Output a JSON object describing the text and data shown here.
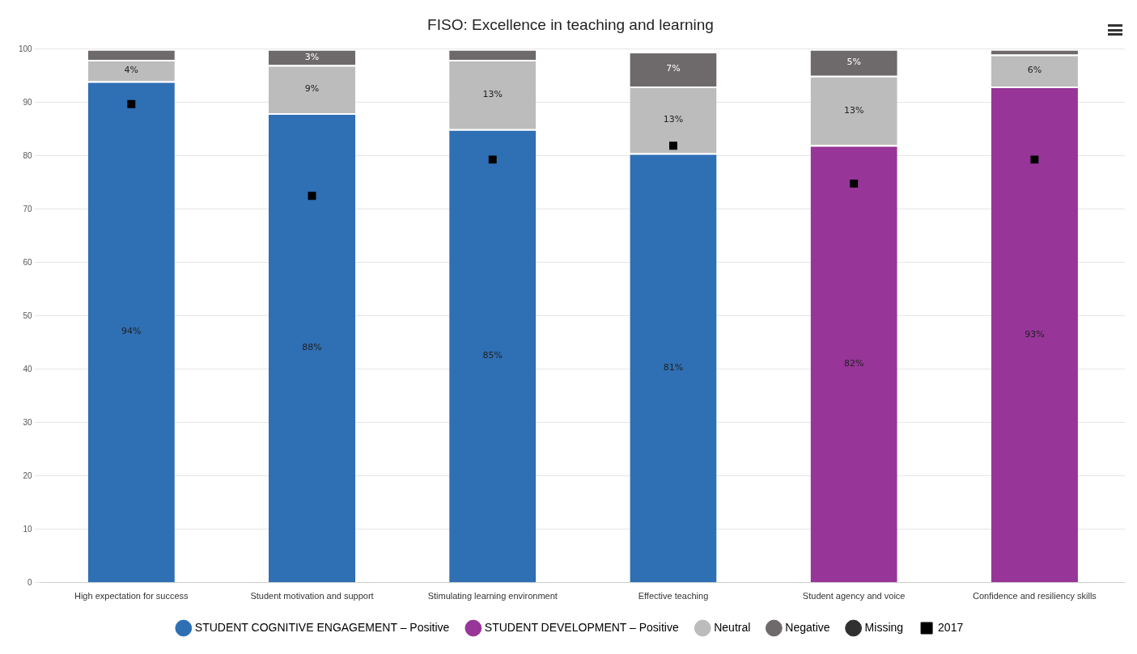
{
  "chart_data": {
    "type": "bar",
    "stacked": true,
    "title": "FISO: Excellence in teaching and learning",
    "categories": [
      "High expectation for success",
      "Student motivation and support",
      "Stimulating learning environment",
      "Effective teaching",
      "Student agency and voice",
      "Confidence and resiliency skills"
    ],
    "series": [
      {
        "name": "STUDENT COGNITIVE ENGAGEMENT – Positive",
        "color": "#2f6fb4",
        "values": [
          94,
          88,
          85,
          80.5,
          null,
          null
        ],
        "value_labels": [
          "94%",
          "88%",
          "85%",
          "81%",
          null,
          null
        ]
      },
      {
        "name": "STUDENT DEVELOPMENT – Positive",
        "color": "#973598",
        "values": [
          null,
          null,
          null,
          null,
          82,
          93
        ],
        "value_labels": [
          null,
          null,
          null,
          null,
          "82%",
          "93%"
        ]
      },
      {
        "name": "Neutral",
        "color": "#bcbcbc",
        "values": [
          4,
          9,
          13,
          12.5,
          13,
          6
        ],
        "value_labels": [
          "4%",
          "9%",
          "13%",
          "13%",
          "13%",
          "6%"
        ]
      },
      {
        "name": "Negative",
        "color": "#6e6a6b",
        "values": [
          2,
          3,
          2,
          6.5,
          5,
          1
        ],
        "value_labels": [
          null,
          "3%",
          null,
          "7%",
          "5%",
          null
        ]
      },
      {
        "name": "Missing",
        "color": "#303030",
        "values": [
          null,
          null,
          null,
          null,
          null,
          null
        ]
      },
      {
        "name": "2017",
        "type": "scatter",
        "color": "#000000",
        "x": [
          "High expectation for success",
          "Student motivation and support",
          "Stimulating learning environment",
          "Effective teaching",
          "Student agency and voice",
          "Confidence and resiliency skills"
        ],
        "values": [
          89.7,
          72.5,
          79.3,
          81.9,
          74.8,
          79.3
        ]
      }
    ],
    "ylim": [
      0,
      100
    ],
    "yticks": [
      0,
      10,
      20,
      30,
      40,
      50,
      60,
      70,
      80,
      90,
      100
    ],
    "grid": "y",
    "legend": "bottom"
  }
}
